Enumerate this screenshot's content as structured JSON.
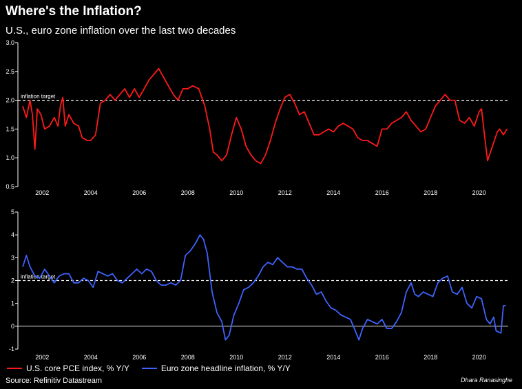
{
  "header": {
    "title": "Where's the Inflation?",
    "subtitle": "U.S., euro zone inflation over the last two decades"
  },
  "footer": {
    "source": "Source: Refinitiv Datastream",
    "credit": "Dhara Ranasinghe"
  },
  "colors": {
    "us": "#ff1a1a",
    "euro": "#3f63ff",
    "background": "#000000"
  },
  "chart_data": [
    {
      "type": "line",
      "id": "us_pce",
      "title": "",
      "xlabel": "",
      "ylabel": "",
      "xlim": [
        2001.0,
        2021.2
      ],
      "ylim": [
        0.5,
        3.0
      ],
      "x_ticks": [
        2002,
        2004,
        2006,
        2008,
        2010,
        2012,
        2014,
        2016,
        2018,
        2020
      ],
      "y_ticks": [
        "0.5",
        "1.0",
        "1.5",
        "2.0",
        "2.5",
        "3.0"
      ],
      "grid": false,
      "reference_line": {
        "y": 2.0,
        "label": "inflation target",
        "style": "dashed"
      },
      "series": [
        {
          "name": "U.S. core PCE index, % Y/Y",
          "color": "#ff1a1a",
          "points": [
            [
              2001.2,
              1.9
            ],
            [
              2001.35,
              1.7
            ],
            [
              2001.5,
              2.0
            ],
            [
              2001.6,
              1.75
            ],
            [
              2001.7,
              1.15
            ],
            [
              2001.8,
              1.85
            ],
            [
              2001.95,
              1.75
            ],
            [
              2002.1,
              1.5
            ],
            [
              2002.3,
              1.55
            ],
            [
              2002.5,
              1.7
            ],
            [
              2002.65,
              1.55
            ],
            [
              2002.75,
              1.9
            ],
            [
              2002.85,
              2.05
            ],
            [
              2002.95,
              1.55
            ],
            [
              2003.1,
              1.75
            ],
            [
              2003.3,
              1.6
            ],
            [
              2003.5,
              1.55
            ],
            [
              2003.65,
              1.35
            ],
            [
              2003.85,
              1.3
            ],
            [
              2004.0,
              1.3
            ],
            [
              2004.2,
              1.4
            ],
            [
              2004.4,
              1.95
            ],
            [
              2004.6,
              2.0
            ],
            [
              2004.8,
              2.1
            ],
            [
              2005.0,
              2.0
            ],
            [
              2005.2,
              2.1
            ],
            [
              2005.4,
              2.2
            ],
            [
              2005.6,
              2.05
            ],
            [
              2005.8,
              2.2
            ],
            [
              2006.0,
              2.05
            ],
            [
              2006.2,
              2.2
            ],
            [
              2006.4,
              2.35
            ],
            [
              2006.6,
              2.45
            ],
            [
              2006.8,
              2.55
            ],
            [
              2007.0,
              2.4
            ],
            [
              2007.2,
              2.25
            ],
            [
              2007.4,
              2.1
            ],
            [
              2007.6,
              2.0
            ],
            [
              2007.8,
              2.2
            ],
            [
              2008.0,
              2.2
            ],
            [
              2008.2,
              2.25
            ],
            [
              2008.45,
              2.2
            ],
            [
              2008.7,
              1.9
            ],
            [
              2008.9,
              1.5
            ],
            [
              2009.05,
              1.1
            ],
            [
              2009.2,
              1.05
            ],
            [
              2009.4,
              0.95
            ],
            [
              2009.6,
              1.05
            ],
            [
              2009.8,
              1.4
            ],
            [
              2010.0,
              1.7
            ],
            [
              2010.2,
              1.5
            ],
            [
              2010.4,
              1.2
            ],
            [
              2010.6,
              1.05
            ],
            [
              2010.8,
              0.95
            ],
            [
              2011.0,
              0.9
            ],
            [
              2011.2,
              1.05
            ],
            [
              2011.4,
              1.3
            ],
            [
              2011.6,
              1.6
            ],
            [
              2011.8,
              1.85
            ],
            [
              2012.0,
              2.05
            ],
            [
              2012.2,
              2.1
            ],
            [
              2012.4,
              1.95
            ],
            [
              2012.6,
              1.75
            ],
            [
              2012.8,
              1.8
            ],
            [
              2013.0,
              1.6
            ],
            [
              2013.2,
              1.4
            ],
            [
              2013.4,
              1.4
            ],
            [
              2013.6,
              1.45
            ],
            [
              2013.8,
              1.5
            ],
            [
              2014.0,
              1.45
            ],
            [
              2014.2,
              1.55
            ],
            [
              2014.4,
              1.6
            ],
            [
              2014.6,
              1.55
            ],
            [
              2014.8,
              1.5
            ],
            [
              2015.0,
              1.35
            ],
            [
              2015.2,
              1.3
            ],
            [
              2015.4,
              1.3
            ],
            [
              2015.6,
              1.25
            ],
            [
              2015.8,
              1.2
            ],
            [
              2016.0,
              1.5
            ],
            [
              2016.2,
              1.5
            ],
            [
              2016.4,
              1.6
            ],
            [
              2016.6,
              1.65
            ],
            [
              2016.8,
              1.7
            ],
            [
              2017.0,
              1.8
            ],
            [
              2017.2,
              1.65
            ],
            [
              2017.4,
              1.55
            ],
            [
              2017.6,
              1.45
            ],
            [
              2017.8,
              1.5
            ],
            [
              2018.0,
              1.7
            ],
            [
              2018.2,
              1.9
            ],
            [
              2018.4,
              2.0
            ],
            [
              2018.6,
              2.1
            ],
            [
              2018.8,
              2.0
            ],
            [
              2019.0,
              2.0
            ],
            [
              2019.2,
              1.65
            ],
            [
              2019.4,
              1.6
            ],
            [
              2019.6,
              1.7
            ],
            [
              2019.8,
              1.55
            ],
            [
              2020.0,
              1.8
            ],
            [
              2020.1,
              1.85
            ],
            [
              2020.25,
              1.3
            ],
            [
              2020.35,
              0.95
            ],
            [
              2020.55,
              1.2
            ],
            [
              2020.75,
              1.45
            ],
            [
              2020.85,
              1.5
            ],
            [
              2021.0,
              1.4
            ],
            [
              2021.15,
              1.5
            ]
          ]
        }
      ]
    },
    {
      "type": "line",
      "id": "euro_hicp",
      "title": "",
      "xlabel": "",
      "ylabel": "",
      "xlim": [
        2001.0,
        2021.2
      ],
      "ylim": [
        -1,
        5
      ],
      "x_ticks": [
        2002,
        2004,
        2006,
        2008,
        2010,
        2012,
        2014,
        2016,
        2018,
        2020
      ],
      "y_ticks": [
        "-1",
        "0",
        "1",
        "2",
        "3",
        "4",
        "5"
      ],
      "grid": false,
      "reference_line": {
        "y": 2.0,
        "label": "inflation target",
        "style": "dashed"
      },
      "zero_line": true,
      "series": [
        {
          "name": "Euro zone headline inflation, % Y/Y",
          "color": "#3f63ff",
          "points": [
            [
              2001.2,
              2.6
            ],
            [
              2001.35,
              3.1
            ],
            [
              2001.5,
              2.6
            ],
            [
              2001.7,
              2.2
            ],
            [
              2001.9,
              2.1
            ],
            [
              2002.1,
              2.5
            ],
            [
              2002.3,
              2.2
            ],
            [
              2002.5,
              1.9
            ],
            [
              2002.7,
              2.2
            ],
            [
              2002.9,
              2.3
            ],
            [
              2003.1,
              2.3
            ],
            [
              2003.3,
              1.9
            ],
            [
              2003.5,
              1.9
            ],
            [
              2003.7,
              2.1
            ],
            [
              2003.9,
              2.0
            ],
            [
              2004.1,
              1.7
            ],
            [
              2004.3,
              2.4
            ],
            [
              2004.5,
              2.3
            ],
            [
              2004.7,
              2.2
            ],
            [
              2004.9,
              2.3
            ],
            [
              2005.1,
              2.0
            ],
            [
              2005.3,
              1.9
            ],
            [
              2005.5,
              2.1
            ],
            [
              2005.7,
              2.3
            ],
            [
              2005.9,
              2.5
            ],
            [
              2006.1,
              2.3
            ],
            [
              2006.3,
              2.5
            ],
            [
              2006.5,
              2.4
            ],
            [
              2006.7,
              2.0
            ],
            [
              2006.9,
              1.8
            ],
            [
              2007.1,
              1.8
            ],
            [
              2007.3,
              1.9
            ],
            [
              2007.5,
              1.8
            ],
            [
              2007.7,
              2.0
            ],
            [
              2007.9,
              3.1
            ],
            [
              2008.1,
              3.3
            ],
            [
              2008.3,
              3.6
            ],
            [
              2008.5,
              4.0
            ],
            [
              2008.65,
              3.8
            ],
            [
              2008.8,
              3.2
            ],
            [
              2009.0,
              1.5
            ],
            [
              2009.2,
              0.6
            ],
            [
              2009.4,
              0.2
            ],
            [
              2009.55,
              -0.6
            ],
            [
              2009.7,
              -0.4
            ],
            [
              2009.9,
              0.5
            ],
            [
              2010.1,
              1.0
            ],
            [
              2010.3,
              1.6
            ],
            [
              2010.5,
              1.7
            ],
            [
              2010.7,
              1.9
            ],
            [
              2010.9,
              2.2
            ],
            [
              2011.1,
              2.6
            ],
            [
              2011.3,
              2.8
            ],
            [
              2011.5,
              2.7
            ],
            [
              2011.7,
              3.0
            ],
            [
              2011.9,
              2.8
            ],
            [
              2012.1,
              2.6
            ],
            [
              2012.3,
              2.6
            ],
            [
              2012.5,
              2.5
            ],
            [
              2012.7,
              2.5
            ],
            [
              2012.9,
              2.1
            ],
            [
              2013.1,
              1.8
            ],
            [
              2013.3,
              1.4
            ],
            [
              2013.5,
              1.5
            ],
            [
              2013.7,
              1.1
            ],
            [
              2013.9,
              0.8
            ],
            [
              2014.1,
              0.7
            ],
            [
              2014.3,
              0.5
            ],
            [
              2014.5,
              0.4
            ],
            [
              2014.7,
              0.3
            ],
            [
              2014.9,
              -0.2
            ],
            [
              2015.05,
              -0.6
            ],
            [
              2015.2,
              -0.1
            ],
            [
              2015.4,
              0.3
            ],
            [
              2015.6,
              0.2
            ],
            [
              2015.8,
              0.1
            ],
            [
              2016.0,
              0.3
            ],
            [
              2016.2,
              -0.1
            ],
            [
              2016.4,
              -0.1
            ],
            [
              2016.6,
              0.2
            ],
            [
              2016.8,
              0.6
            ],
            [
              2017.0,
              1.5
            ],
            [
              2017.2,
              1.9
            ],
            [
              2017.35,
              1.4
            ],
            [
              2017.5,
              1.3
            ],
            [
              2017.7,
              1.5
            ],
            [
              2017.9,
              1.4
            ],
            [
              2018.1,
              1.3
            ],
            [
              2018.3,
              1.9
            ],
            [
              2018.5,
              2.1
            ],
            [
              2018.7,
              2.2
            ],
            [
              2018.9,
              1.5
            ],
            [
              2019.1,
              1.4
            ],
            [
              2019.3,
              1.7
            ],
            [
              2019.5,
              1.0
            ],
            [
              2019.7,
              0.8
            ],
            [
              2019.9,
              1.3
            ],
            [
              2020.1,
              1.2
            ],
            [
              2020.3,
              0.3
            ],
            [
              2020.45,
              0.1
            ],
            [
              2020.6,
              0.4
            ],
            [
              2020.7,
              -0.2
            ],
            [
              2020.9,
              -0.3
            ],
            [
              2021.0,
              0.9
            ],
            [
              2021.1,
              0.9
            ]
          ]
        }
      ]
    }
  ],
  "legend": {
    "us_label": "U.S. core PCE index, % Y/Y",
    "euro_label": "Euro zone headline inflation, % Y/Y"
  }
}
